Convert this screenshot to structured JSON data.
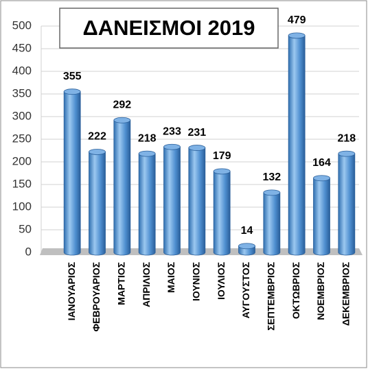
{
  "chart_data": {
    "type": "bar",
    "title": "ΔΑΝΕΙΣΜΟΙ 2019",
    "categories": [
      "ΙΑΝΟΥΑΡΙΟΣ",
      "ΦΕΒΡΟΥΑΡΙΟΣ",
      "ΜΑΡΤΙΟΣ",
      "ΑΠΡΙΛΙΟΣ",
      "ΜΑΙΟΣ",
      "ΙΟΥΝΙΟΣ",
      "ΙΟΥΛΙΟΣ",
      "ΑΥΓΟΥΣΤΟΣ",
      "ΣΕΠΤΕΜΒΡΙΟΣ",
      "ΟΚΤΩΒΡΙΟΣ",
      "ΝΟΕΜΒΡΙΟΣ",
      "ΔΕΚΕΜΒΡΙΟΣ"
    ],
    "values": [
      355,
      222,
      292,
      218,
      233,
      231,
      179,
      14,
      132,
      479,
      164,
      218
    ],
    "color": "#5b9bd5",
    "ylim": [
      0,
      500
    ],
    "yticks": [
      0,
      50,
      100,
      150,
      200,
      250,
      300,
      350,
      400,
      450,
      500
    ],
    "grid": true
  }
}
